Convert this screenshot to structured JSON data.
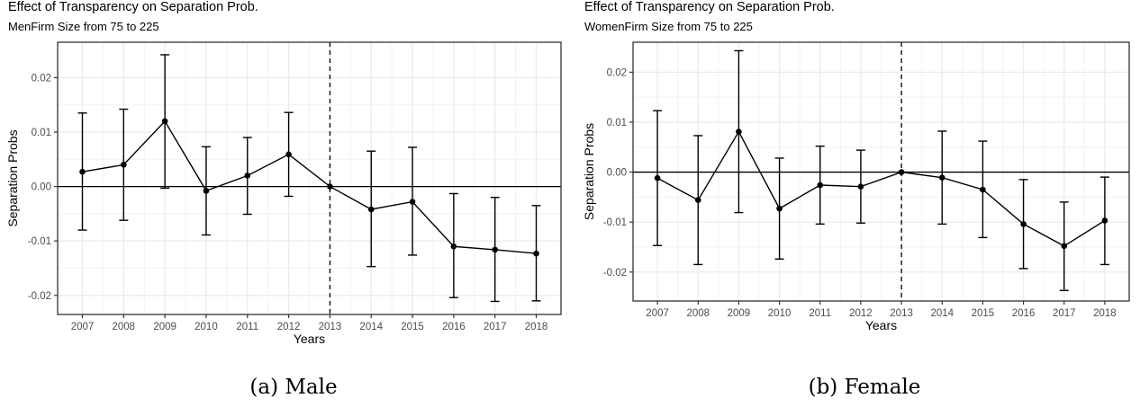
{
  "chart_data": [
    {
      "type": "scatter",
      "title": "Effect of Transparency on Separation Prob.",
      "subtitle": "MenFirm Size from 75 to 225",
      "caption": "(a) Male",
      "xlabel": "Years",
      "ylabel": "Separation Probs",
      "x": [
        2007,
        2008,
        2009,
        2010,
        2011,
        2012,
        2013,
        2014,
        2015,
        2016,
        2017,
        2018
      ],
      "xlim": [
        2006.4,
        2018.6
      ],
      "ylim": [
        -0.0235,
        0.0265
      ],
      "yticks": [
        -0.02,
        -0.01,
        0.0,
        0.01,
        0.02
      ],
      "ytick_labels": [
        "-0.02",
        "-0.01",
        "0.00",
        "0.01",
        "0.02"
      ],
      "reference_hline": 0,
      "reference_vline": 2013,
      "grid": true,
      "series": [
        {
          "values": [
            0.0027,
            0.004,
            0.012,
            -0.0008,
            0.002,
            0.0059,
            0.0,
            -0.0042,
            -0.0028,
            -0.011,
            -0.0116,
            -0.0123
          ],
          "lower": [
            -0.008,
            -0.0062,
            -0.0003,
            -0.0089,
            -0.0051,
            -0.0018,
            0.0,
            -0.0147,
            -0.0126,
            -0.0204,
            -0.0211,
            -0.021
          ],
          "upper": [
            0.0135,
            0.0142,
            0.0242,
            0.0073,
            0.009,
            0.0136,
            0.0,
            0.0065,
            0.0072,
            -0.0013,
            -0.002,
            -0.0035
          ]
        }
      ]
    },
    {
      "type": "scatter",
      "title": "Effect of Transparency on Separation Prob.",
      "subtitle": "WomenFirm Size from 75 to 225",
      "caption": "(b) Female",
      "xlabel": "Years",
      "ylabel": "Separation Probs",
      "x": [
        2007,
        2008,
        2009,
        2010,
        2011,
        2012,
        2013,
        2014,
        2015,
        2016,
        2017,
        2018
      ],
      "xlim": [
        2006.4,
        2018.6
      ],
      "ylim": [
        -0.0258,
        0.026
      ],
      "yticks": [
        -0.02,
        -0.01,
        0.0,
        0.01,
        0.02
      ],
      "ytick_labels": [
        "-0.02",
        "-0.01",
        "0.00",
        "0.01",
        "0.02"
      ],
      "reference_hline": 0,
      "reference_vline": 2013,
      "grid": true,
      "series": [
        {
          "values": [
            -0.0012,
            -0.0056,
            0.0081,
            -0.0073,
            -0.0026,
            -0.0029,
            0.0,
            -0.0011,
            -0.0035,
            -0.0104,
            -0.0148,
            -0.0097
          ],
          "lower": [
            -0.0147,
            -0.0185,
            -0.0081,
            -0.0174,
            -0.0104,
            -0.0102,
            0.0,
            -0.0104,
            -0.0131,
            -0.0193,
            -0.0237,
            -0.0185
          ],
          "upper": [
            0.0123,
            0.0073,
            0.0243,
            0.0028,
            0.0052,
            0.0044,
            0.0,
            0.0082,
            0.0062,
            -0.0015,
            -0.006,
            -0.001
          ]
        }
      ]
    }
  ]
}
